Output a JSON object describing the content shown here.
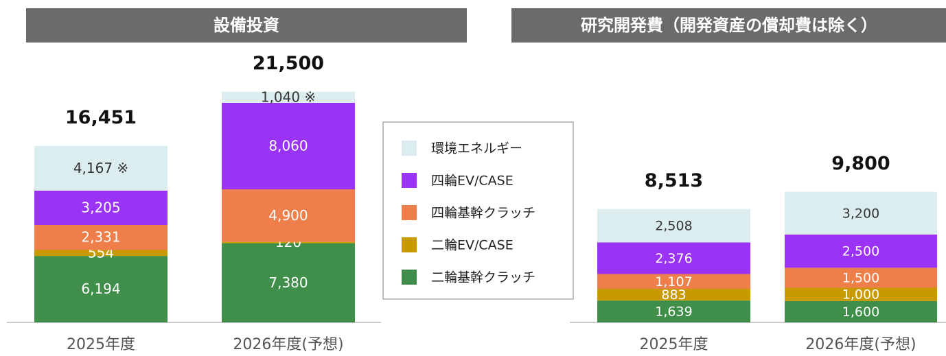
{
  "chart_data": [
    {
      "type": "stacked_bar",
      "title": "設備投資",
      "categories": [
        "2025年度",
        "2026年度(予想)"
      ],
      "series": [
        {
          "name": "二輪基幹クラッチ",
          "color": "#3f8f4a",
          "values": [
            6194,
            7380
          ],
          "value_labels": [
            "6,194",
            "7,380"
          ]
        },
        {
          "name": "二輪EV/CASE",
          "color": "#c99a00",
          "values": [
            554,
            120
          ],
          "value_labels": [
            "554",
            "120"
          ]
        },
        {
          "name": "四輪基幹クラッチ",
          "color": "#ee7f4b",
          "values": [
            2331,
            4900
          ],
          "value_labels": [
            "2,331",
            "4,900"
          ]
        },
        {
          "name": "四輪EV/CASE",
          "color": "#9a33f5",
          "values": [
            3205,
            8060
          ],
          "value_labels": [
            "3,205",
            "8,060"
          ]
        },
        {
          "name": "環境エネルギー",
          "color": "#dcedef",
          "values": [
            4167,
            1040
          ],
          "value_labels": [
            "4,167 ※",
            "1,040 ※"
          ]
        }
      ],
      "totals": [
        16451,
        21500
      ],
      "total_labels": [
        "16,451",
        "21,500"
      ]
    },
    {
      "type": "stacked_bar",
      "title": "研究開発費（開発資産の償却費は除く）",
      "categories": [
        "2025年度",
        "2026年度(予想)"
      ],
      "series": [
        {
          "name": "二輪基幹クラッチ",
          "color": "#3f8f4a",
          "values": [
            1639,
            1600
          ],
          "value_labels": [
            "1,639",
            "1,600"
          ]
        },
        {
          "name": "二輪EV/CASE",
          "color": "#c99a00",
          "values": [
            883,
            1000
          ],
          "value_labels": [
            "883",
            "1,000"
          ]
        },
        {
          "name": "四輪基幹クラッチ",
          "color": "#ee7f4b",
          "values": [
            1107,
            1500
          ],
          "value_labels": [
            "1,107",
            "1,500"
          ]
        },
        {
          "name": "四輪EV/CASE",
          "color": "#9a33f5",
          "values": [
            2376,
            2500
          ],
          "value_labels": [
            "2,376",
            "2,500"
          ]
        },
        {
          "name": "環境エネルギー",
          "color": "#dcedef",
          "values": [
            2508,
            3200
          ],
          "value_labels": [
            "2,508",
            "3,200"
          ]
        }
      ],
      "totals": [
        8513,
        9800
      ],
      "total_labels": [
        "8,513",
        "9,800"
      ]
    }
  ]
}
